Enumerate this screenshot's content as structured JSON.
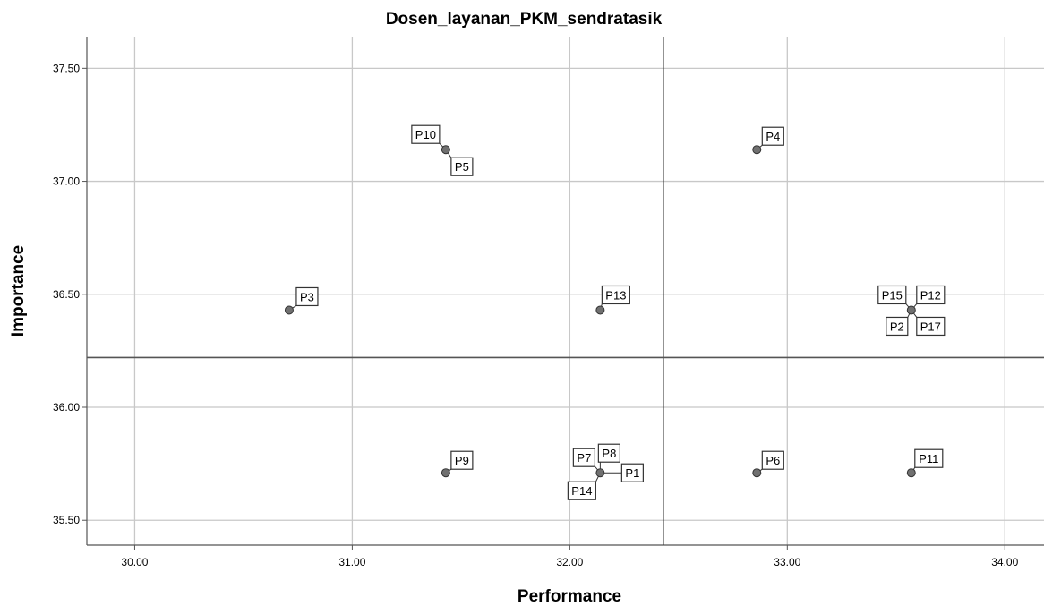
{
  "chart_data": {
    "type": "scatter",
    "title": "Dosen_layanan_PKM_sendratasik",
    "xlabel": "Performance",
    "ylabel": "Importance",
    "xlim": [
      29.78,
      34.18
    ],
    "ylim": [
      35.39,
      37.64
    ],
    "xticks": [
      "30.00",
      "31.00",
      "32.00",
      "33.00",
      "34.00"
    ],
    "xtick_values": [
      30,
      31,
      32,
      33,
      34
    ],
    "yticks": [
      "35.50",
      "36.00",
      "36.50",
      "37.00",
      "37.50"
    ],
    "ytick_values": [
      35.5,
      36.0,
      36.5,
      37.0,
      37.5
    ],
    "grid": true,
    "reference_lines": {
      "x_mean": 32.43,
      "y_mean": 36.22
    },
    "points": [
      {
        "label": "P1",
        "x": 32.14,
        "y": 35.71
      },
      {
        "label": "P2",
        "x": 33.57,
        "y": 36.43
      },
      {
        "label": "P3",
        "x": 30.71,
        "y": 36.43
      },
      {
        "label": "P4",
        "x": 32.86,
        "y": 37.14
      },
      {
        "label": "P5",
        "x": 31.43,
        "y": 37.14
      },
      {
        "label": "P6",
        "x": 32.86,
        "y": 35.71
      },
      {
        "label": "P7",
        "x": 32.14,
        "y": 35.71
      },
      {
        "label": "P8",
        "x": 32.14,
        "y": 35.71
      },
      {
        "label": "P9",
        "x": 31.43,
        "y": 35.71
      },
      {
        "label": "P10",
        "x": 31.43,
        "y": 37.14
      },
      {
        "label": "P11",
        "x": 33.57,
        "y": 35.71
      },
      {
        "label": "P12",
        "x": 33.57,
        "y": 36.43
      },
      {
        "label": "P13",
        "x": 32.14,
        "y": 36.43
      },
      {
        "label": "P14",
        "x": 32.14,
        "y": 35.71
      },
      {
        "label": "P15",
        "x": 33.57,
        "y": 36.43
      },
      {
        "label": "P17",
        "x": 33.57,
        "y": 36.43
      }
    ]
  }
}
